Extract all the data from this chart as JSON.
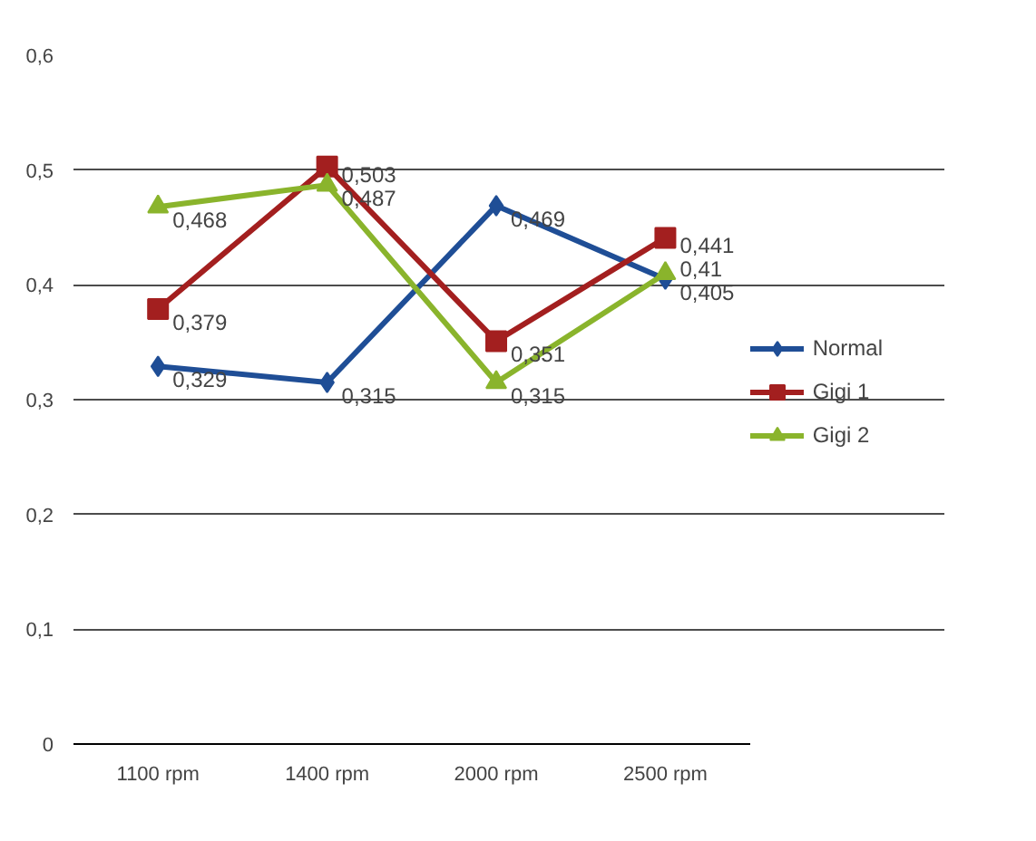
{
  "chart_data": {
    "type": "line",
    "categories": [
      "1100 rpm",
      "1400 rpm",
      "2000 rpm",
      "2500 rpm"
    ],
    "series": [
      {
        "name": "Normal",
        "color": "#1f4e96",
        "marker": "diamond",
        "values": [
          0.329,
          0.315,
          0.469,
          0.405
        ],
        "value_labels": [
          "0,329",
          "0,315",
          "0,469",
          "0,405"
        ]
      },
      {
        "name": "Gigi 1",
        "color": "#a31f1f",
        "marker": "square",
        "values": [
          0.379,
          0.503,
          0.351,
          0.441
        ],
        "value_labels": [
          "0,379",
          "0,503",
          "0,351",
          "0,441"
        ]
      },
      {
        "name": "Gigi 2",
        "color": "#8ab42c",
        "marker": "triangle",
        "values": [
          0.468,
          0.487,
          0.315,
          0.41
        ],
        "value_labels": [
          "0,468",
          "0,487",
          "0,315",
          "0,41"
        ]
      }
    ],
    "ylim": [
      0,
      0.6
    ],
    "yticks": [
      {
        "value": 0,
        "label": "0"
      },
      {
        "value": 0.1,
        "label": "0,1"
      },
      {
        "value": 0.2,
        "label": "0,2"
      },
      {
        "value": 0.3,
        "label": "0,3"
      },
      {
        "value": 0.4,
        "label": "0,4"
      },
      {
        "value": 0.5,
        "label": "0,5"
      },
      {
        "value": 0.6,
        "label": "0,6"
      }
    ],
    "grid": "y",
    "legend": "right"
  }
}
